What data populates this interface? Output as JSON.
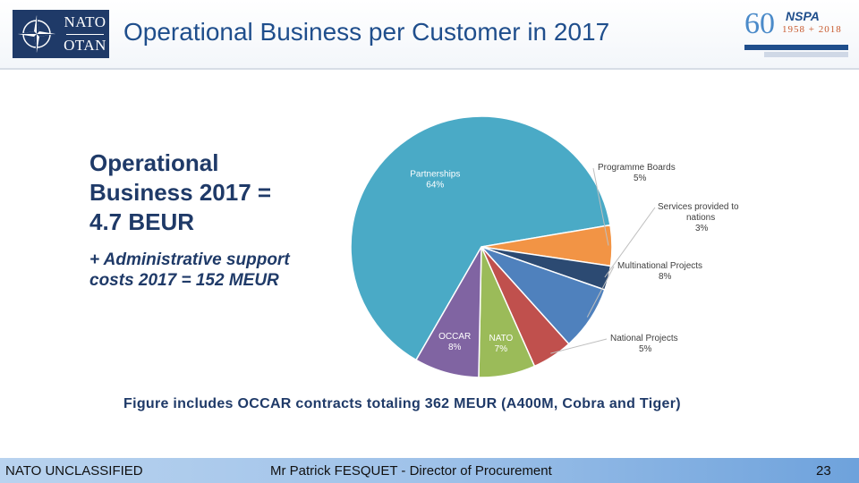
{
  "header": {
    "title": "Operational Business per Customer in 2017",
    "nato_logo_text": [
      "NATO",
      "OTAN"
    ],
    "nspa_logo": {
      "number": "60",
      "acronym": "NSPA",
      "years": "1958 + 2018"
    }
  },
  "summary": {
    "line1": "Operational",
    "line2": "Business 2017 =",
    "line3": "4.7 BEUR",
    "line4": "+ Administrative support",
    "line5": "costs 2017 = 152 MEUR"
  },
  "chart_data": {
    "type": "pie",
    "slices": [
      {
        "label": "Partnerships",
        "value": 64,
        "display": "64%",
        "color": "#4aaac6",
        "label_inside": true
      },
      {
        "label": "Programme Boards",
        "value": 5,
        "display": "5%",
        "color": "#f29445",
        "label_inside": false
      },
      {
        "label": "Services provided to nations",
        "value": 3,
        "display": "3%",
        "color": "#2c4a72",
        "label_inside": false
      },
      {
        "label": "Multinational Projects",
        "value": 8,
        "display": "8%",
        "color": "#4f81bd",
        "label_inside": false
      },
      {
        "label": "National Projects",
        "value": 5,
        "display": "5%",
        "color": "#c0504d",
        "label_inside": false
      },
      {
        "label": "NATO",
        "value": 7,
        "display": "7%",
        "color": "#9bbb59",
        "label_inside": true
      },
      {
        "label": "OCCAR",
        "value": 8,
        "display": "8%",
        "color": "#8064a2",
        "label_inside": true
      }
    ]
  },
  "caption": "Figure includes OCCAR contracts totaling 362 MEUR (A400M, Cobra and Tiger)",
  "footer": {
    "classification": "NATO UNCLASSIFIED",
    "presenter": "Mr Patrick FESQUET - Director of Procurement",
    "page_number": "23"
  }
}
